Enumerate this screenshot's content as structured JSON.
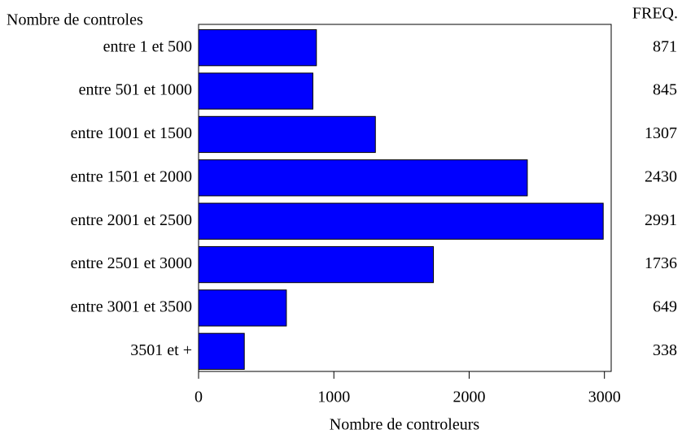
{
  "chart_data": {
    "type": "barh",
    "y_label": "Nombre de controles",
    "x_label": "Nombre de controleurs",
    "stat_header": "FREQ.",
    "categories": [
      "entre 1 et 500",
      "entre 501 et 1000",
      "entre 1001 et 1500",
      "entre 1501 et 2000",
      "entre 2001 et 2500",
      "entre 2501 et 3000",
      "entre 3001 et 3500",
      "3501 et +"
    ],
    "values": [
      871,
      845,
      1307,
      2430,
      2991,
      1736,
      649,
      338
    ],
    "color": "#0000ff",
    "xlim": [
      0,
      3050
    ],
    "xticks": [
      0,
      1000,
      2000,
      3000
    ]
  }
}
